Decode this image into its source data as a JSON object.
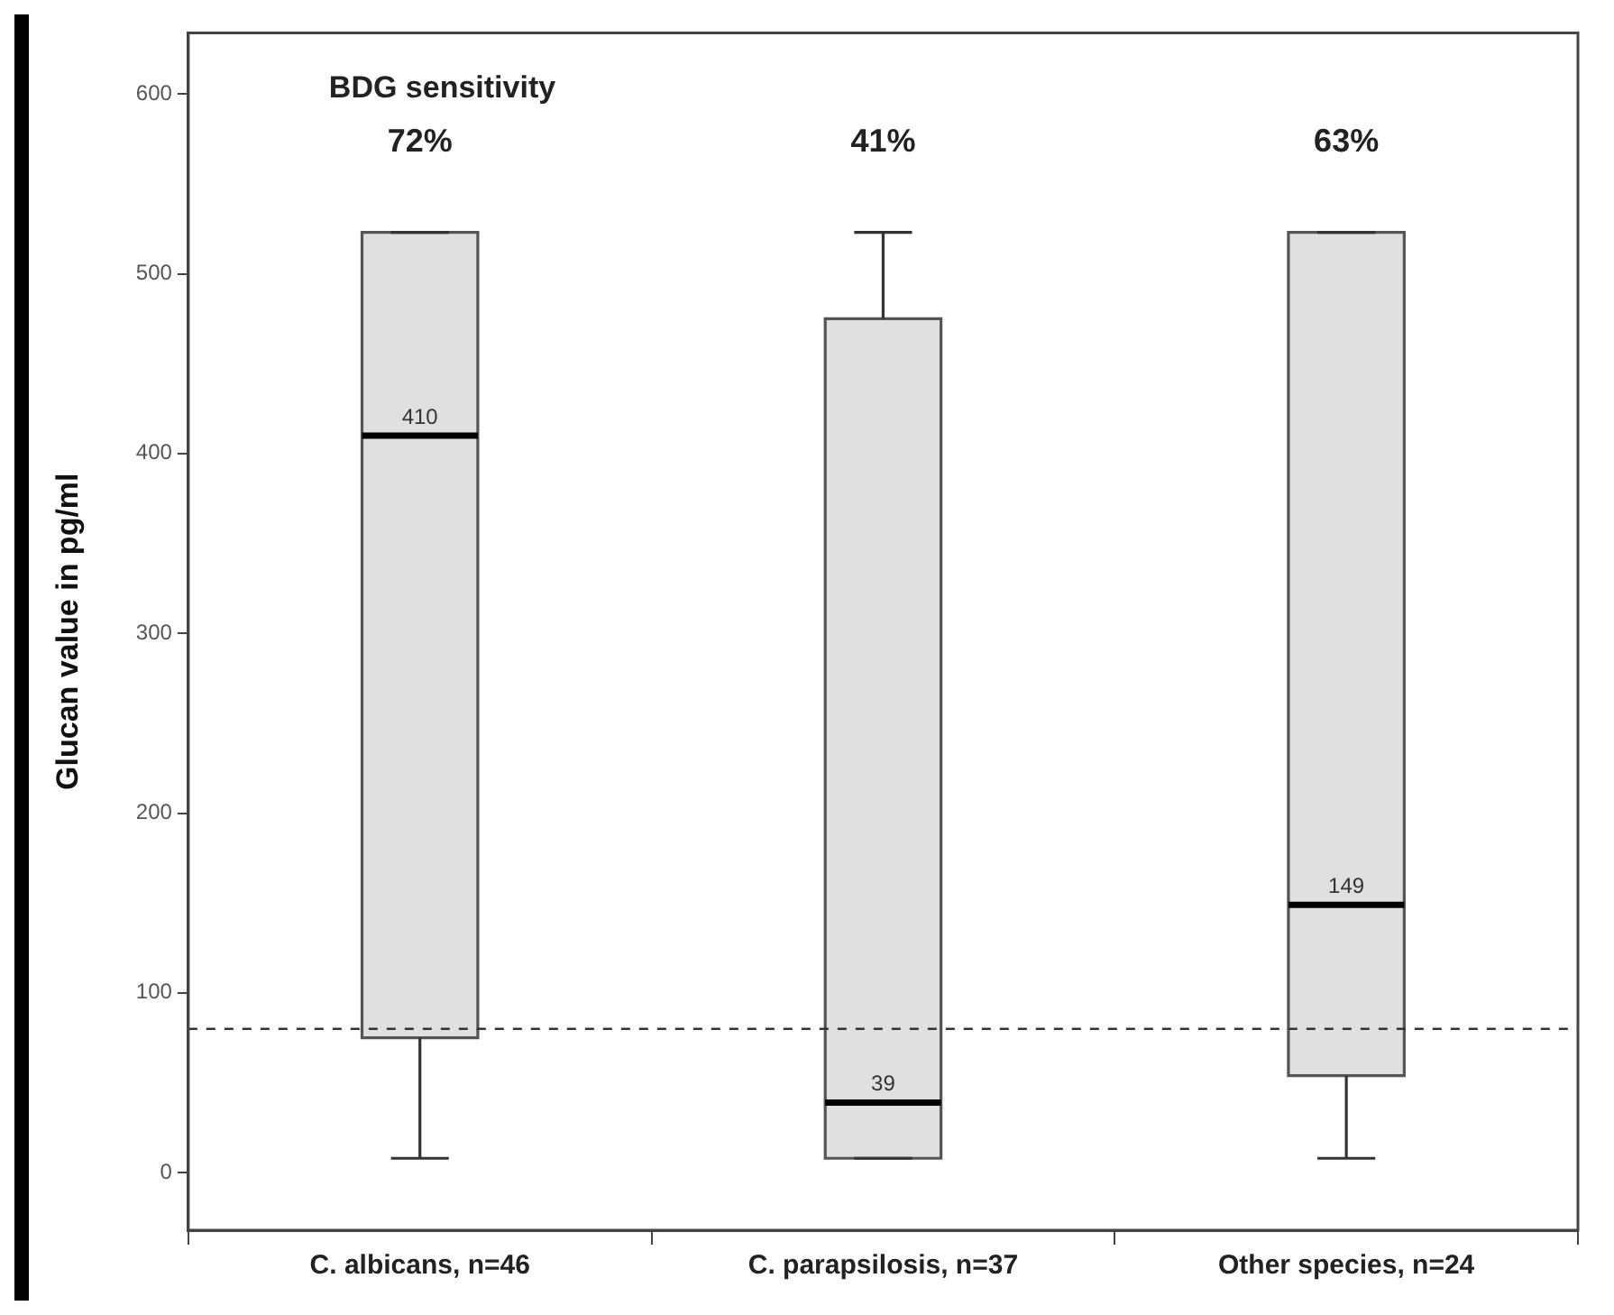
{
  "chart_data": {
    "type": "box",
    "ylabel": "Glucan value in pg/ml",
    "categories": [
      "C. albicans, n=46",
      "C. parapsilosis, n=37",
      "Other species, n=24"
    ],
    "boxes": [
      {
        "low": 8,
        "q1": 75,
        "median": 410,
        "q3": 523,
        "high": 523
      },
      {
        "low": 8,
        "q1": 8,
        "median": 39,
        "q3": 475,
        "high": 523
      },
      {
        "low": 8,
        "q1": 54,
        "median": 149,
        "q3": 523,
        "high": 523
      }
    ],
    "color": "#e0e0e0",
    "ylim": [
      -32,
      634
    ],
    "yticks": [
      0,
      100,
      200,
      300,
      400,
      500,
      600
    ],
    "grid": false,
    "ref_lines": [
      {
        "axis": "y",
        "value": 80,
        "line_style": "dashed",
        "color": "#333333"
      }
    ],
    "annotations": [
      "BDG sensitivity",
      "72%",
      "41%",
      "63%",
      {
        "text": "410",
        "x": "C. albicans, n=46",
        "y": 410
      },
      {
        "text": "39",
        "x": "C. parapsilosis, n=37",
        "y": 39
      },
      {
        "text": "149",
        "x": "Other species, n=24",
        "y": 149
      }
    ]
  }
}
